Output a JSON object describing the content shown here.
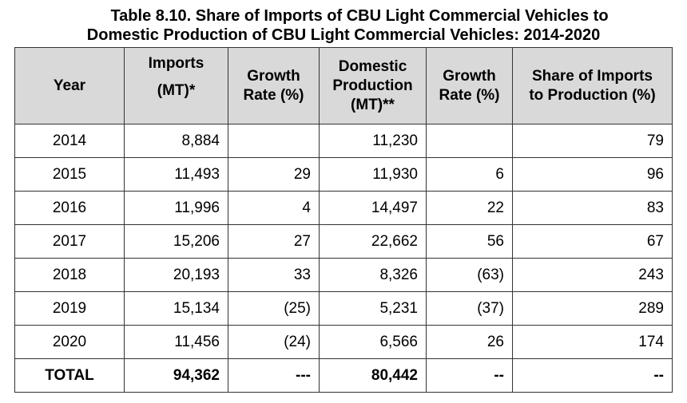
{
  "title": {
    "line1": "Table 8.10. Share of Imports of CBU Light Commercial Vehicles to",
    "line2": "Domestic Production of CBU Light Commercial Vehicles: 2014-2020"
  },
  "headers": {
    "year": "Year",
    "imports_l1": "Imports",
    "imports_l2": "(MT)*",
    "growth1_l1": "Growth",
    "growth1_l2": "Rate (%)",
    "domestic_l1": "Domestic",
    "domestic_l2": "Production",
    "domestic_l3": "(MT)**",
    "growth2_l1": "Growth",
    "growth2_l2": "Rate (%)",
    "share_l1": "Share of Imports",
    "share_l2": "to Production (%)"
  },
  "rows": [
    {
      "year": "2014",
      "imports": "8,884",
      "imports_growth": "",
      "production": "11,230",
      "production_growth": "",
      "share": "79"
    },
    {
      "year": "2015",
      "imports": "11,493",
      "imports_growth": "29",
      "production": "11,930",
      "production_growth": "6",
      "share": "96"
    },
    {
      "year": "2016",
      "imports": "11,996",
      "imports_growth": "4",
      "production": "14,497",
      "production_growth": "22",
      "share": "83"
    },
    {
      "year": "2017",
      "imports": "15,206",
      "imports_growth": "27",
      "production": "22,662",
      "production_growth": "56",
      "share": "67"
    },
    {
      "year": "2018",
      "imports": "20,193",
      "imports_growth": "33",
      "production": "8,326",
      "production_growth": "(63)",
      "share": "243"
    },
    {
      "year": "2019",
      "imports": "15,134",
      "imports_growth": "(25)",
      "production": "5,231",
      "production_growth": "(37)",
      "share": "289"
    },
    {
      "year": "2020",
      "imports": "11,456",
      "imports_growth": "(24)",
      "production": "6,566",
      "production_growth": "26",
      "share": "174"
    }
  ],
  "total": {
    "label": "TOTAL",
    "imports": "94,362",
    "imports_growth": "---",
    "production": "80,442",
    "production_growth": "--",
    "share": "--"
  }
}
